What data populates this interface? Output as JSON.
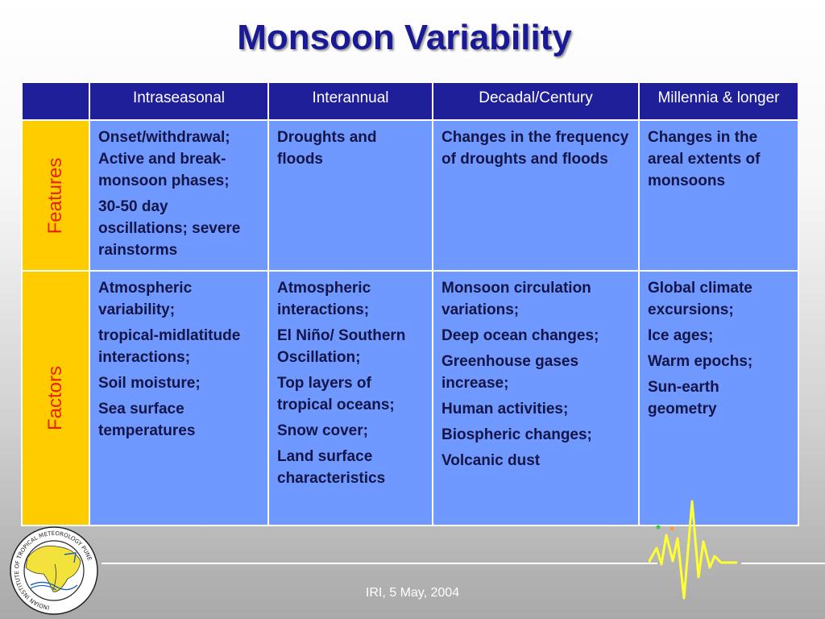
{
  "title": "Monsoon Variability",
  "table": {
    "columns": [
      "",
      "Intraseasonal",
      "Interannual",
      "Decadal/Century",
      "Millennia & longer"
    ],
    "rows": [
      {
        "label": "Features",
        "cells": [
          [
            "Onset/withdrawal; Active and break-monsoon phases;",
            "30-50 day oscillations; severe rainstorms"
          ],
          [
            "Droughts and floods"
          ],
          [
            "Changes in the frequency of droughts and floods"
          ],
          [
            "Changes in the areal extents of monsoons"
          ]
        ]
      },
      {
        "label": "Factors",
        "cells": [
          [
            "Atmospheric variability;",
            "tropical-midlatitude interactions;",
            "Soil moisture;",
            "Sea surface temperatures"
          ],
          [
            "Atmospheric interactions;",
            "El Niño/ Southern Oscillation;",
            "Top layers of tropical oceans;",
            "Snow cover;",
            "Land surface characteristics"
          ],
          [
            "Monsoon circulation variations;",
            "Deep ocean changes;",
            "Greenhouse gases increase;",
            "Human activities;",
            "Biospheric changes;",
            "Volcanic dust"
          ],
          [
            "Global climate excursions;",
            "Ice ages;",
            "Warm epochs;",
            "Sun-earth geometry"
          ]
        ]
      }
    ]
  },
  "logo": {
    "text": "INDIAN INSTITUTE OF TROPICAL METEOROLOGY PUNE"
  },
  "footer": "IRI, 5 May, 2004",
  "colors": {
    "title": "#1a1a96",
    "header_bg": "#1f1f9a",
    "cell_bg": "#6f99ff",
    "rowhead_bg": "#ffcc00",
    "rowhead_text": "#e62400"
  }
}
